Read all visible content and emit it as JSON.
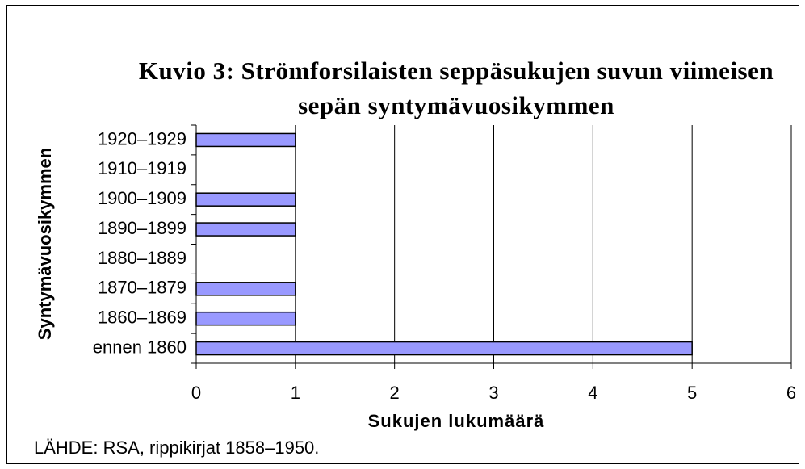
{
  "chart_data": {
    "type": "hbar",
    "title": "Kuvio 3: Strömforsilaisten seppäsukujen suvun viimeisen sepän syntymävuosikymmen",
    "categories": [
      "ennen 1860",
      "1860–1869",
      "1870–1879",
      "1880–1889",
      "1890–1899",
      "1900–1909",
      "1910–1919",
      "1920–1929"
    ],
    "values": [
      5,
      1,
      1,
      0,
      1,
      1,
      0,
      1
    ],
    "color": "#9999ff",
    "xlim": [
      0,
      6
    ],
    "xticks": [
      0,
      1,
      2,
      3,
      4,
      5,
      6
    ],
    "grid": true,
    "xlabel": "Sukujen lukumäärä",
    "ylabel": "Syntymävuosikymmen",
    "source": "LÄHDE: RSA, rippikirjat 1858–1950."
  }
}
